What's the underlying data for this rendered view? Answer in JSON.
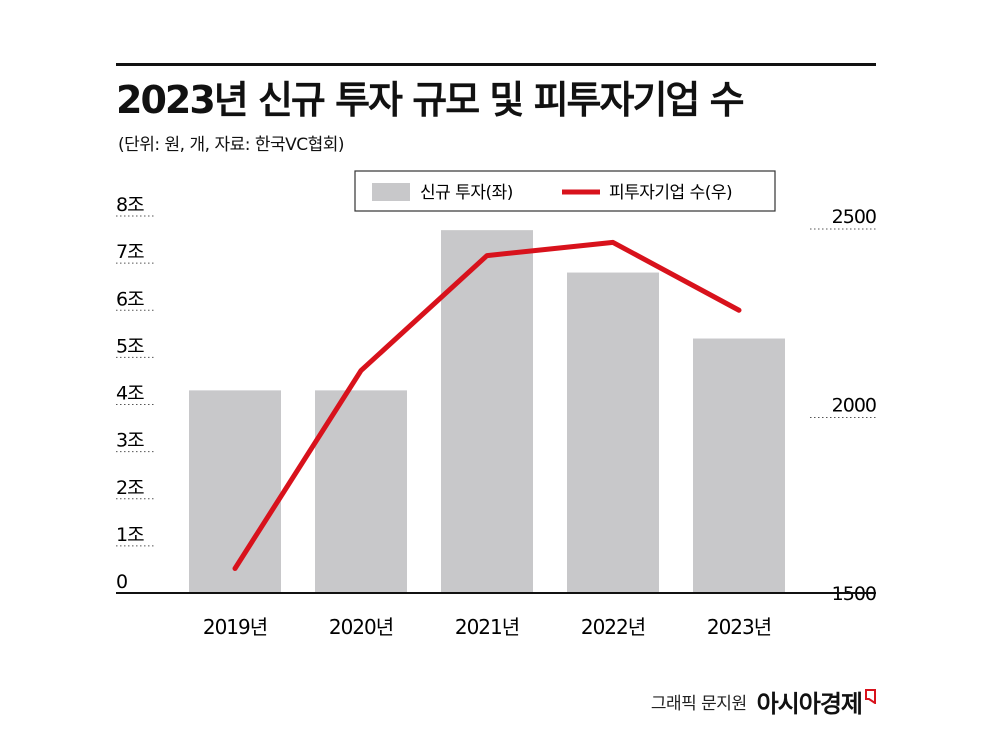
{
  "title": "2023년 신규 투자 규모 및 피투자기업 수",
  "subtitle": "(단위: 원, 개, 자료: 한국VC협회)",
  "credit": {
    "text": "그래픽 문지원",
    "brand": "아시아경제"
  },
  "colors": {
    "bar": "#c8c8ca",
    "line": "#d8121c",
    "axis": "#111111"
  },
  "chart_data": {
    "type": "bar+line",
    "categories": [
      "2019년",
      "2020년",
      "2021년",
      "2022년",
      "2023년"
    ],
    "series": [
      {
        "name": "신규 투자(좌)",
        "type": "bar",
        "axis": "left",
        "values": [
          4.3,
          4.3,
          7.7,
          6.8,
          5.4
        ]
      },
      {
        "name": "피투자기업 수(우)",
        "type": "line",
        "axis": "right",
        "values": [
          1565,
          2090,
          2395,
          2430,
          2250
        ]
      }
    ],
    "y_left": {
      "ylim": [
        0,
        8
      ],
      "ticks": [
        0,
        1,
        2,
        3,
        4,
        5,
        6,
        7,
        8
      ],
      "tick_labels": [
        "0",
        "1조",
        "2조",
        "3조",
        "4조",
        "5조",
        "6조",
        "7조",
        "8조"
      ]
    },
    "y_right": {
      "ylim": [
        1500,
        2500
      ],
      "ticks": [
        1500,
        2000,
        2500
      ],
      "tick_labels": [
        "1500",
        "2000",
        "2500"
      ]
    },
    "legend": {
      "placement": "top-center",
      "entries": [
        "신규 투자(좌)",
        "피투자기업 수(우)"
      ]
    },
    "grid": false
  }
}
